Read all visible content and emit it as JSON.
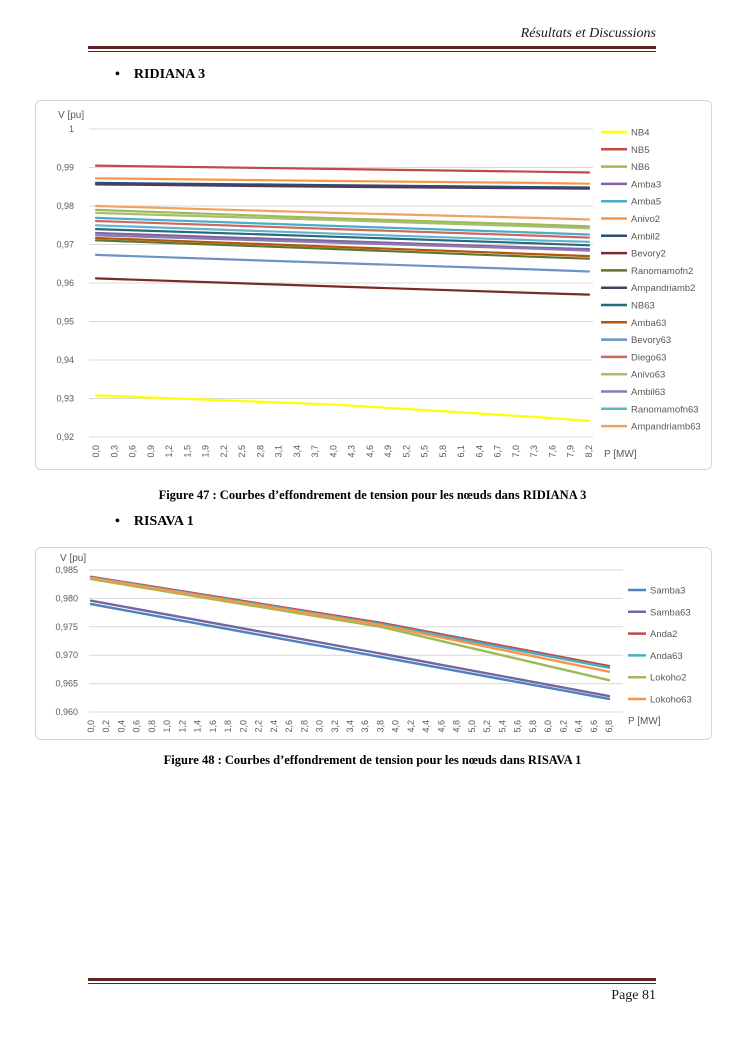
{
  "header": {
    "title": "Résultats et Discussions"
  },
  "sections": {
    "ridiana": {
      "bullet": "•",
      "heading": "RIDIANA 3",
      "caption": "Figure 47 : Courbes d’effondrement de tension pour les nœuds dans RIDIANA 3"
    },
    "risava": {
      "bullet": "•",
      "heading": "RISAVA 1",
      "caption": "Figure 48 : Courbes d’effondrement de tension pour les nœuds dans RISAVA 1"
    }
  },
  "footer": {
    "page_label": "Page 81"
  },
  "chart_data": [
    {
      "type": "line",
      "title": "",
      "ylabel": "V [pu]",
      "xlabel": "P [MW]",
      "grid": true,
      "legend_position": "right",
      "ylim": [
        0.92,
        1.0
      ],
      "ytick_values": [
        1,
        0.99,
        0.98,
        0.97,
        0.96,
        0.95,
        0.94,
        0.93,
        0.92
      ],
      "ytick_labels": [
        "1",
        "0,99",
        "0,98",
        "0,97",
        "0,96",
        "0,95",
        "0,94",
        "0,93",
        "0,92"
      ],
      "x_tick_labels": [
        "0,0",
        "0,3",
        "0,6",
        "0,9",
        "1,2",
        "1,5",
        "1,9",
        "2,2",
        "2,5",
        "2,8",
        "3,1",
        "3,4",
        "3,7",
        "4,0",
        "4,3",
        "4,6",
        "4,9",
        "5,2",
        "5,5",
        "5,8",
        "6,1",
        "6,4",
        "6,7",
        "7,0",
        "7,3",
        "7,6",
        "7,9",
        "8,2"
      ],
      "x_max": 8.2,
      "x_anchors": [
        0.0,
        4.0,
        7.3,
        8.2
      ],
      "series": [
        {
          "name": "NB4",
          "color": "#FFFF00",
          "values": [
            0.9308,
            0.9284,
            0.9252,
            0.9242
          ]
        },
        {
          "name": "NB5",
          "color": "#BE4B48",
          "values": [
            0.9905,
            0.9896,
            0.9889,
            0.9887
          ]
        },
        {
          "name": "NB6",
          "color": "#9BBB59",
          "values": [
            0.979,
            0.9768,
            0.9752,
            0.9747
          ]
        },
        {
          "name": "Amba3",
          "color": "#8064A2",
          "values": [
            0.973,
            0.9709,
            0.9692,
            0.9688
          ]
        },
        {
          "name": "Amba5",
          "color": "#4BACC6",
          "values": [
            0.9769,
            0.9748,
            0.9731,
            0.9726
          ]
        },
        {
          "name": "Anivo2",
          "color": "#F79646",
          "values": [
            0.9872,
            0.9865,
            0.986,
            0.9858
          ]
        },
        {
          "name": "Ambil2",
          "color": "#2C4D75",
          "values": [
            0.986,
            0.9854,
            0.9849,
            0.9848
          ]
        },
        {
          "name": "Bevory2",
          "color": "#772C2A",
          "values": [
            0.9612,
            0.9591,
            0.9574,
            0.957
          ]
        },
        {
          "name": "Ranomamofn2",
          "color": "#5F7530",
          "values": [
            0.9711,
            0.9688,
            0.9668,
            0.9663
          ]
        },
        {
          "name": "Ampandriamb2",
          "color": "#4D3B62",
          "values": [
            0.9856,
            0.985,
            0.9846,
            0.9845
          ]
        },
        {
          "name": "NB63",
          "color": "#276A7C",
          "values": [
            0.974,
            0.972,
            0.9703,
            0.9698
          ]
        },
        {
          "name": "Amba63",
          "color": "#B65708",
          "values": [
            0.9717,
            0.9694,
            0.9675,
            0.967
          ]
        },
        {
          "name": "Bevory63",
          "color": "#6B93C6",
          "values": [
            0.9673,
            0.9652,
            0.9635,
            0.963
          ]
        },
        {
          "name": "Diego63",
          "color": "#C96A62",
          "values": [
            0.9761,
            0.974,
            0.9723,
            0.9718
          ]
        },
        {
          "name": "Anivo63",
          "color": "#A9BD6F",
          "values": [
            0.9782,
            0.9763,
            0.9747,
            0.9742
          ]
        },
        {
          "name": "Ambil63",
          "color": "#8C7BB0",
          "values": [
            0.9724,
            0.9705,
            0.9689,
            0.9684
          ]
        },
        {
          "name": "Ranomamofn63",
          "color": "#62B4CC",
          "values": [
            0.975,
            0.9728,
            0.9711,
            0.9707
          ]
        },
        {
          "name": "Ampandriamb63",
          "color": "#F0A263",
          "values": [
            0.98,
            0.9782,
            0.9769,
            0.9765
          ]
        }
      ]
    },
    {
      "type": "line",
      "title": "",
      "ylabel": "V [pu]",
      "xlabel": "P [MW]",
      "grid": true,
      "legend_position": "right",
      "ylim": [
        0.96,
        0.985
      ],
      "ytick_values": [
        0.985,
        0.98,
        0.975,
        0.97,
        0.965,
        0.96
      ],
      "ytick_labels": [
        "0,985",
        "0,980",
        "0,975",
        "0,970",
        "0,965",
        "0,960"
      ],
      "x_tick_labels": [
        "0,0",
        "0,2",
        "0,4",
        "0,6",
        "0,8",
        "1,0",
        "1,2",
        "1,4",
        "1,6",
        "1,8",
        "2,0",
        "2,2",
        "2,4",
        "2,6",
        "2,8",
        "3,0",
        "3,2",
        "3,4",
        "3,6",
        "3,8",
        "4,0",
        "4,2",
        "4,4",
        "4,6",
        "4,8",
        "5,0",
        "5,2",
        "5,4",
        "5,6",
        "5,8",
        "6,0",
        "6,2",
        "6,4",
        "6,6",
        "6,8"
      ],
      "x_max": 6.8,
      "x_anchors": [
        0.0,
        3.8,
        6.8
      ],
      "series": [
        {
          "name": "Samba3",
          "color": "#4F81BD",
          "values": [
            0.979,
            0.9697,
            0.9623
          ]
        },
        {
          "name": "Samba63",
          "color": "#7566A0",
          "values": [
            0.9796,
            0.9703,
            0.9628
          ]
        },
        {
          "name": "Anda2",
          "color": "#BE4B48",
          "values": [
            0.9838,
            0.9757,
            0.9681
          ]
        },
        {
          "name": "Anda63",
          "color": "#4BACC6",
          "values": [
            0.9837,
            0.9755,
            0.9678
          ]
        },
        {
          "name": "Lokoho2",
          "color": "#9BBB59",
          "values": [
            0.9834,
            0.975,
            0.9656
          ]
        },
        {
          "name": "Lokoho63",
          "color": "#F79646",
          "values": [
            0.9836,
            0.9753,
            0.9671
          ]
        }
      ]
    }
  ]
}
